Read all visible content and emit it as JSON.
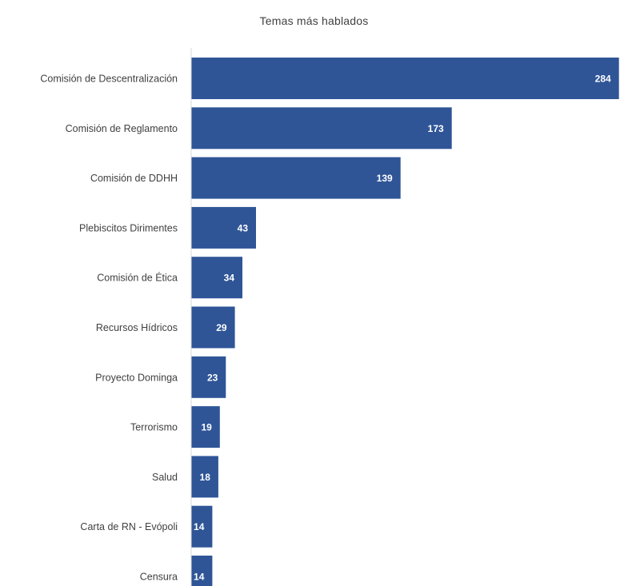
{
  "chart_data": {
    "type": "bar",
    "orientation": "horizontal",
    "title": "Temas más hablados",
    "xlabel": "",
    "ylabel": "",
    "categories": [
      "Comisión de Descentralización",
      "Comisión de Reglamento",
      "Comisión de DDHH",
      "Plebiscitos Dirimentes",
      "Comisión de Ética",
      "Recursos Hídricos",
      "Proyecto Dominga",
      "Terrorismo",
      "Salud",
      "Carta de RN - Evópoli",
      "Censura"
    ],
    "values": [
      284,
      173,
      139,
      43,
      34,
      29,
      23,
      19,
      18,
      14,
      14
    ],
    "data_labels": [
      "284",
      "173",
      "139",
      "43",
      "34",
      "29",
      "23",
      "19",
      "18",
      "14",
      "14"
    ],
    "xlim": [
      0,
      290
    ],
    "grid": false,
    "legend": "none",
    "colors": {
      "bar": "#2F5597",
      "data_label": "#ffffff",
      "category_label": "#404040",
      "axis_line": "#d9d9d9",
      "title": "#404040"
    }
  }
}
